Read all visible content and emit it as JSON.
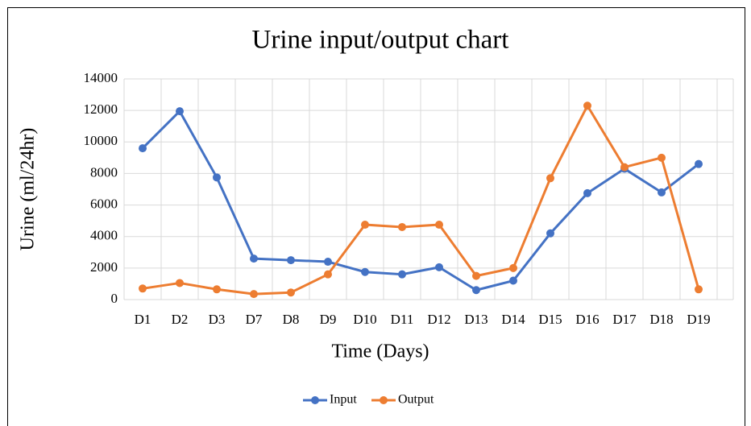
{
  "chart_data": {
    "type": "line",
    "title": "Urine input/output chart",
    "x_label": "Time (Days)",
    "y_label": "Urine (ml/24hr)",
    "categories": [
      "D1",
      "D2",
      "D3",
      "D7",
      "D8",
      "D9",
      "D10",
      "D11",
      "D12",
      "D13",
      "D14",
      "D15",
      "D16",
      "D17",
      "D18",
      "D19"
    ],
    "series": [
      {
        "name": "Input",
        "color": "#4472c4",
        "values": [
          9600,
          11950,
          7750,
          2600,
          2500,
          2400,
          1750,
          1600,
          2050,
          600,
          1200,
          4200,
          6750,
          8300,
          6800,
          8600
        ]
      },
      {
        "name": "Output",
        "color": "#ed7d31",
        "values": [
          700,
          1050,
          650,
          350,
          450,
          1600,
          4750,
          4600,
          4750,
          1500,
          2000,
          7700,
          12300,
          8400,
          9000,
          650
        ]
      }
    ],
    "ylim": [
      0,
      14000
    ],
    "yticks": [
      0,
      2000,
      4000,
      6000,
      8000,
      10000,
      12000,
      14000
    ],
    "grid": true,
    "legend": "bottom"
  }
}
